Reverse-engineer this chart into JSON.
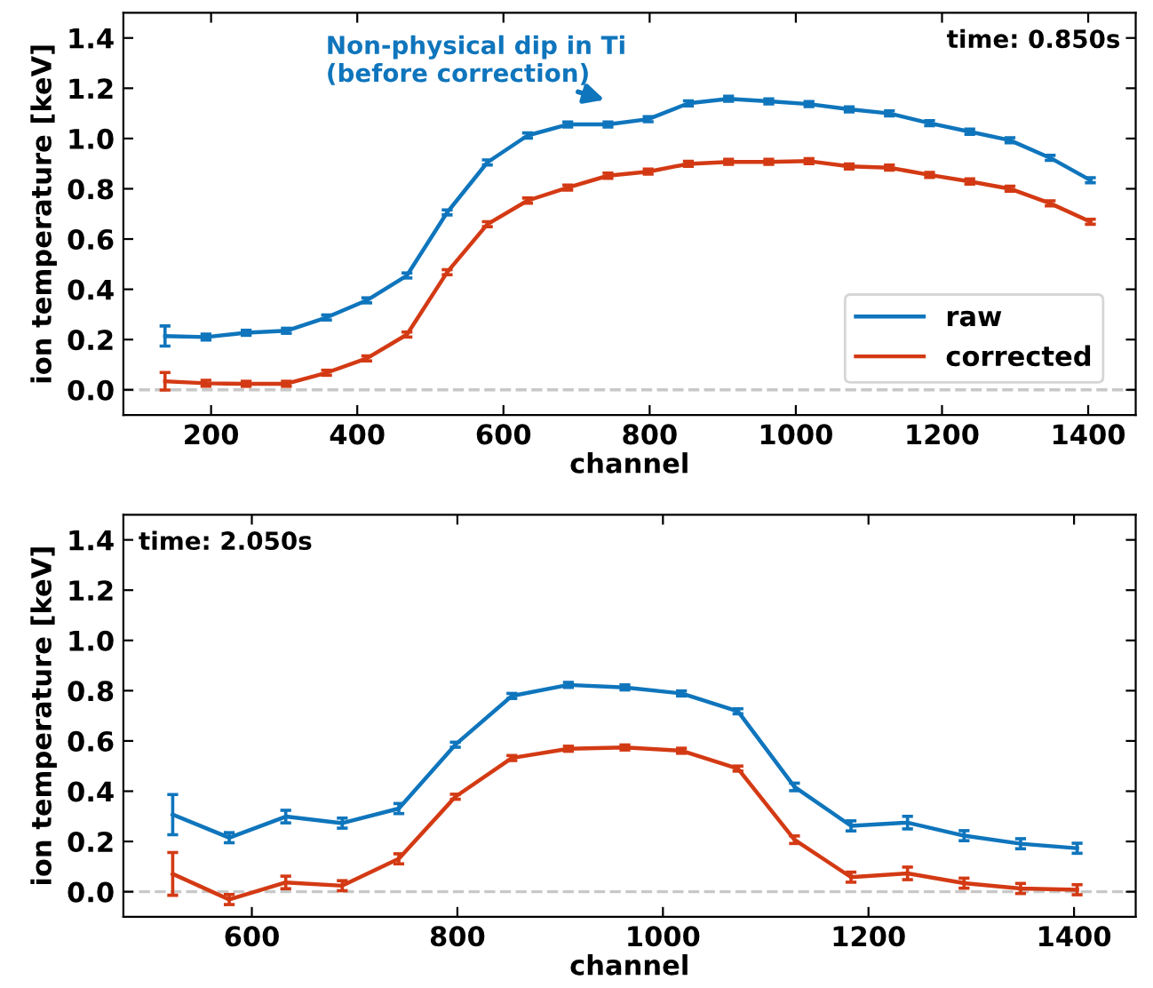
{
  "chart_data": [
    {
      "type": "line",
      "xlabel": "channel",
      "ylabel": "ion temperature [keV]",
      "xlim": [
        80,
        1465
      ],
      "ylim": [
        -0.1,
        1.5
      ],
      "xticks": [
        200,
        400,
        600,
        800,
        1000,
        1200,
        1400
      ],
      "yticks": [
        {
          "value": 0,
          "label": "0.0"
        },
        {
          "value": 0.2,
          "label": "0.2"
        },
        {
          "value": 0.4,
          "label": "0.4"
        },
        {
          "value": 0.6,
          "label": "0.6"
        },
        {
          "value": 0.8,
          "label": "0.8"
        },
        {
          "value": 1.0,
          "label": "1.0"
        },
        {
          "value": 1.2,
          "label": "1.2"
        },
        {
          "value": 1.4,
          "label": "1.4"
        }
      ],
      "grid": false,
      "legend": "lower right",
      "marker": "none",
      "line_style": "solid",
      "x": [
        137,
        193,
        248,
        303,
        358,
        413,
        468,
        523,
        578,
        633,
        688,
        743,
        798,
        853,
        908,
        963,
        1018,
        1073,
        1128,
        1183,
        1238,
        1293,
        1348,
        1403
      ],
      "series": [
        {
          "name": "raw",
          "color": "#0f75bc",
          "values": [
            0.214,
            0.21,
            0.227,
            0.235,
            0.288,
            0.356,
            0.455,
            0.706,
            0.905,
            1.012,
            1.056,
            1.056,
            1.077,
            1.14,
            1.158,
            1.148,
            1.137,
            1.116,
            1.1,
            1.061,
            1.027,
            0.993,
            0.923,
            0.834
          ],
          "errors": [
            0.04,
            0.012,
            0.01,
            0.01,
            0.01,
            0.01,
            0.01,
            0.01,
            0.01,
            0.01,
            0.01,
            0.01,
            0.01,
            0.01,
            0.01,
            0.01,
            0.01,
            0.01,
            0.01,
            0.01,
            0.01,
            0.01,
            0.01,
            0.01
          ]
        },
        {
          "name": "corrected",
          "color": "#d33a14",
          "values": [
            0.034,
            0.026,
            0.024,
            0.024,
            0.068,
            0.125,
            0.22,
            0.468,
            0.659,
            0.753,
            0.805,
            0.852,
            0.868,
            0.899,
            0.907,
            0.907,
            0.91,
            0.889,
            0.884,
            0.855,
            0.829,
            0.8,
            0.742,
            0.669
          ],
          "errors": [
            0.035,
            0.012,
            0.01,
            0.01,
            0.01,
            0.01,
            0.01,
            0.01,
            0.01,
            0.01,
            0.01,
            0.01,
            0.01,
            0.01,
            0.01,
            0.01,
            0.01,
            0.01,
            0.01,
            0.01,
            0.01,
            0.01,
            0.01,
            0.01
          ]
        }
      ],
      "ref_lines": [
        {
          "axis": "y",
          "value": 0,
          "color": "#c8c8c8",
          "line_style": "dashed"
        }
      ],
      "annotations": [
        "time: 0.850s",
        "Non-physical dip in Ti\n(before correction)"
      ]
    },
    {
      "type": "line",
      "xlabel": "channel",
      "ylabel": "ion temperature [keV]",
      "xlim": [
        475,
        1460
      ],
      "ylim": [
        -0.1,
        1.5
      ],
      "xticks": [
        600,
        800,
        1000,
        1200,
        1400
      ],
      "yticks": [
        {
          "value": 0,
          "label": "0.0"
        },
        {
          "value": 0.2,
          "label": "0.2"
        },
        {
          "value": 0.4,
          "label": "0.4"
        },
        {
          "value": 0.6,
          "label": "0.6"
        },
        {
          "value": 0.8,
          "label": "0.8"
        },
        {
          "value": 1.0,
          "label": "1.0"
        },
        {
          "value": 1.2,
          "label": "1.2"
        },
        {
          "value": 1.4,
          "label": "1.4"
        }
      ],
      "grid": false,
      "marker": "none",
      "line_style": "solid",
      "x": [
        523,
        578,
        633,
        688,
        743,
        798,
        853,
        908,
        963,
        1018,
        1073,
        1128,
        1183,
        1238,
        1293,
        1348,
        1403
      ],
      "series": [
        {
          "color": "#0f75bc",
          "values": [
            0.307,
            0.215,
            0.299,
            0.273,
            0.331,
            0.585,
            0.779,
            0.823,
            0.813,
            0.789,
            0.718,
            0.417,
            0.262,
            0.275,
            0.223,
            0.191,
            0.173
          ],
          "errors": [
            0.08,
            0.02,
            0.025,
            0.02,
            0.02,
            0.01,
            0.01,
            0.01,
            0.01,
            0.01,
            0.01,
            0.015,
            0.02,
            0.025,
            0.02,
            0.02,
            0.02
          ]
        },
        {
          "color": "#d33a14",
          "values": [
            0.071,
            -0.031,
            0.037,
            0.024,
            0.131,
            0.378,
            0.532,
            0.569,
            0.574,
            0.561,
            0.49,
            0.207,
            0.058,
            0.073,
            0.034,
            0.013,
            0.008
          ],
          "errors": [
            0.085,
            0.02,
            0.025,
            0.02,
            0.02,
            0.01,
            0.01,
            0.01,
            0.01,
            0.01,
            0.01,
            0.015,
            0.02,
            0.025,
            0.02,
            0.02,
            0.02
          ]
        }
      ],
      "ref_lines": [
        {
          "axis": "y",
          "value": 0,
          "color": "#c8c8c8",
          "line_style": "dashed"
        }
      ],
      "annotations": [
        "time: 2.050s"
      ]
    }
  ]
}
